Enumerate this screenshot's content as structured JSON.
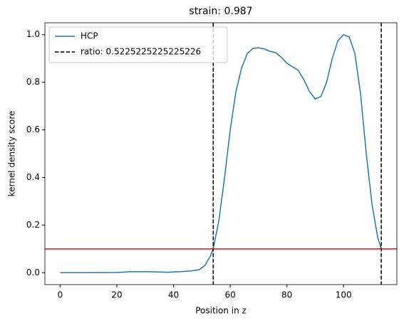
{
  "chart_data": {
    "type": "line",
    "title": "strain: 0.987",
    "xlabel": "Position in z",
    "ylabel": "kernel density score",
    "x": [
      0,
      10,
      20,
      25,
      30,
      35,
      38,
      42,
      46,
      49,
      51,
      53,
      54,
      56,
      58,
      60,
      62,
      64,
      66,
      68,
      70,
      72,
      74,
      76,
      78,
      80,
      82,
      84,
      86,
      88,
      90,
      92,
      94,
      96,
      98,
      100,
      102,
      104,
      106,
      108,
      110,
      112,
      113.3
    ],
    "series": [
      {
        "name": "HCP",
        "color": "#1f77b4",
        "values": [
          0,
          0,
          0.001,
          0.004,
          0.004,
          0.003,
          0.002,
          0.004,
          0.007,
          0.012,
          0.03,
          0.07,
          0.1,
          0.22,
          0.4,
          0.6,
          0.76,
          0.86,
          0.92,
          0.942,
          0.945,
          0.94,
          0.93,
          0.925,
          0.905,
          0.88,
          0.865,
          0.85,
          0.81,
          0.76,
          0.73,
          0.74,
          0.8,
          0.9,
          0.975,
          1.0,
          0.99,
          0.92,
          0.75,
          0.5,
          0.29,
          0.15,
          0.1
        ]
      }
    ],
    "vlines": {
      "name": "ratio: 0.5225225225225226",
      "color": "#000000",
      "values": [
        54,
        113.3
      ]
    },
    "hline": {
      "color": "#ff0000",
      "value": 0.1
    },
    "xlim": [
      -5.4,
      118.8
    ],
    "ylim": [
      -0.05,
      1.05
    ],
    "xticks": [
      0,
      20,
      40,
      60,
      80,
      100
    ],
    "yticks": [
      {
        "value": 0,
        "label": "0.0"
      },
      {
        "value": 0.2,
        "label": "0.2"
      },
      {
        "value": 0.4,
        "label": "0.4"
      },
      {
        "value": 0.6,
        "label": "0.6"
      },
      {
        "value": 0.8,
        "label": "0.8"
      },
      {
        "value": 1,
        "label": "1.0"
      }
    ],
    "legend": "upper left"
  }
}
